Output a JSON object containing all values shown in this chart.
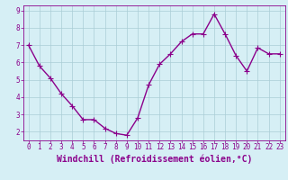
{
  "x": [
    0,
    1,
    2,
    3,
    4,
    5,
    6,
    7,
    8,
    9,
    10,
    11,
    12,
    13,
    14,
    15,
    16,
    17,
    18,
    19,
    20,
    21,
    22,
    23
  ],
  "y": [
    7.0,
    5.8,
    5.1,
    4.2,
    3.5,
    2.7,
    2.7,
    2.2,
    1.9,
    1.8,
    2.8,
    4.7,
    5.9,
    6.5,
    7.2,
    7.65,
    7.65,
    8.8,
    7.65,
    6.4,
    5.5,
    6.85,
    6.5,
    6.5
  ],
  "line_color": "#8B008B",
  "marker": "+",
  "marker_size": 4,
  "bg_color": "#d6eff5",
  "grid_color": "#aacdd6",
  "xlabel": "Windchill (Refroidissement éolien,°C)",
  "xlabel_color": "#8B008B",
  "ylim": [
    1.5,
    9.3
  ],
  "xlim": [
    -0.5,
    23.5
  ],
  "yticks": [
    2,
    3,
    4,
    5,
    6,
    7,
    8,
    9
  ],
  "xticks": [
    0,
    1,
    2,
    3,
    4,
    5,
    6,
    7,
    8,
    9,
    10,
    11,
    12,
    13,
    14,
    15,
    16,
    17,
    18,
    19,
    20,
    21,
    22,
    23
  ],
  "tick_color": "#8B008B",
  "tick_fontsize": 5.5,
  "xlabel_fontsize": 7.0,
  "line_width": 1.0,
  "spine_color": "#8B008B"
}
